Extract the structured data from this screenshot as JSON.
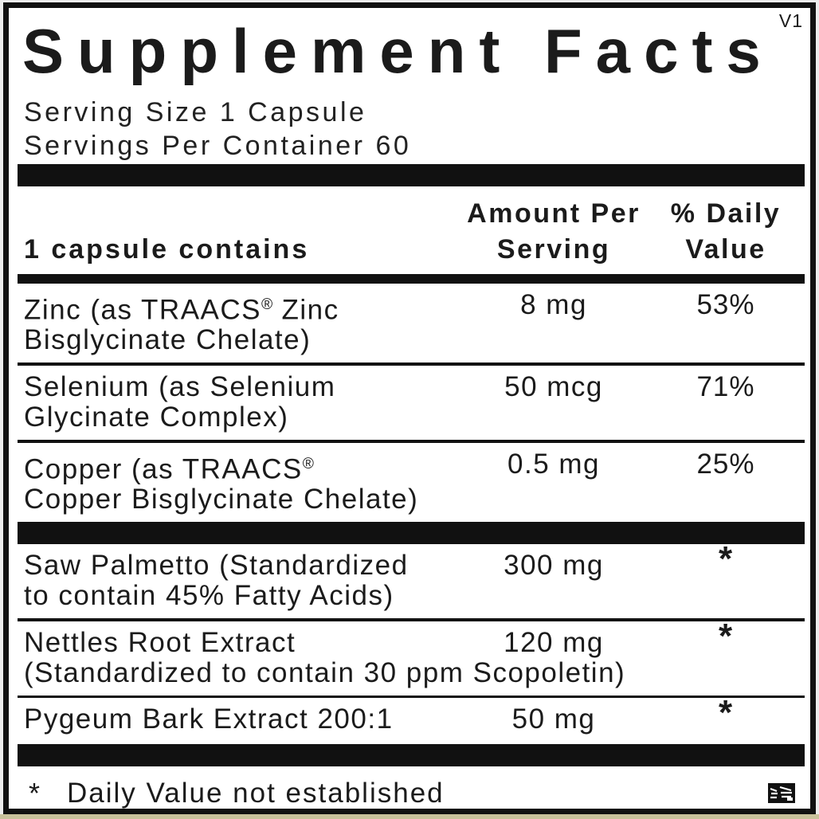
{
  "page": {
    "version": "V1",
    "title": "Supplement Facts",
    "serving_size": "Serving Size 1 Capsule",
    "servings_per_container": "Servings Per Container 60"
  },
  "table": {
    "header": {
      "contains": "1 capsule contains",
      "amount_line1": "Amount Per",
      "amount_line2": "Serving",
      "dv_line1": "% Daily",
      "dv_line2": "Value"
    },
    "rows": [
      {
        "name_line1": "Zinc (as TRAACS® Zinc",
        "name_line2": "Bisglycinate Chelate)",
        "amount": "8 mg",
        "daily_value": "53%"
      },
      {
        "name_line1": "Selenium (as Selenium",
        "name_line2": "Glycinate Complex)",
        "amount": "50 mcg",
        "daily_value": "71%"
      },
      {
        "name_line1": "Copper (as TRAACS®",
        "name_line2": "Copper Bisglycinate Chelate)",
        "amount": "0.5 mg",
        "daily_value": "25%"
      },
      {
        "name_line1": "Saw Palmetto (Standardized",
        "name_line2": "to contain 45% Fatty Acids)",
        "amount": "300 mg",
        "daily_value": "*"
      },
      {
        "name_line1": "Nettles Root Extract",
        "name_line2": "(Standardized to contain 30 ppm Scopoletin)",
        "amount": "120 mg",
        "daily_value": "*"
      },
      {
        "name_line1": "Pygeum Bark Extract 200:1",
        "name_line2": "",
        "amount": "50 mg",
        "daily_value": "*"
      }
    ]
  },
  "footnote": {
    "symbol": "*",
    "text": "Daily Value not established"
  },
  "icons": {
    "corner_mark": "print-registration-mark"
  },
  "colors": {
    "text": "#1b1b1b",
    "bar": "#111111",
    "border": "#111111",
    "label_background": "#ffffff",
    "page_background": "#ececec",
    "bottom_strip": "#c9c29b"
  }
}
